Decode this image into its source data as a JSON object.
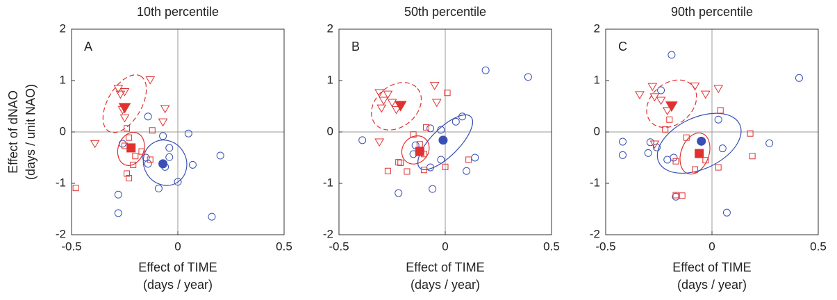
{
  "chart_data": [
    {
      "type": "scatter",
      "title": "10th percentile",
      "panel_label": "A",
      "x_label": [
        "Effect of TIME",
        "(days / year)"
      ],
      "y_label": [
        "Effect of dNAO",
        "(days / unit NAO)"
      ],
      "xlim": [
        -0.5,
        0.5
      ],
      "ylim": [
        -2,
        2
      ],
      "xticks": [
        -0.5,
        0,
        0.5
      ],
      "yticks": [
        -2,
        -1,
        0,
        1,
        2
      ],
      "series": [
        {
          "marker": "circle",
          "color": "#3a4fb5",
          "filled": false,
          "x": [
            -0.14,
            -0.07,
            0.05,
            -0.04,
            -0.04,
            -0.06,
            -0.09,
            0.0,
            0.07,
            0.2,
            0.16,
            -0.28,
            -0.28,
            -0.26,
            -0.15,
            -0.14
          ],
          "values": [
            0.3,
            -0.08,
            -0.03,
            -0.31,
            -0.49,
            -0.68,
            -1.1,
            -0.97,
            -0.64,
            -0.46,
            -1.65,
            -1.22,
            -1.58,
            -0.23,
            -0.5,
            -0.62
          ]
        },
        {
          "marker": "square",
          "color": "#e03030",
          "filled": false,
          "x": [
            -0.48,
            -0.24,
            -0.23,
            -0.25,
            -0.17,
            -0.2,
            -0.21,
            -0.23,
            -0.13,
            -0.12,
            -0.24
          ],
          "values": [
            -1.09,
            0.07,
            -0.11,
            -0.27,
            -0.38,
            -0.47,
            -0.64,
            -0.9,
            -0.54,
            0.03,
            -0.81
          ]
        },
        {
          "marker": "triangle",
          "color": "#e03030",
          "filled": false,
          "x": [
            -0.13,
            -0.28,
            -0.25,
            -0.27,
            -0.26,
            -0.25,
            -0.06,
            -0.07,
            -0.39
          ],
          "values": [
            1.01,
            0.84,
            0.78,
            0.73,
            0.43,
            0.27,
            0.45,
            0.19,
            -0.23
          ]
        },
        {
          "marker": "triangle",
          "color": "#e03030",
          "filled": true,
          "x": [
            -0.25
          ],
          "values": [
            0.47
          ]
        },
        {
          "marker": "square",
          "color": "#e03030",
          "filled": true,
          "x": [
            -0.22
          ],
          "values": [
            -0.31
          ]
        },
        {
          "marker": "circle",
          "color": "#3a4fb5",
          "filled": true,
          "x": [
            -0.07
          ],
          "values": [
            -0.62
          ]
        }
      ],
      "ellipses": [
        {
          "cx": -0.25,
          "cy": 0.55,
          "rx": 0.15,
          "ry": 0.33,
          "angle": -60,
          "color": "#e03030",
          "dashed": true
        },
        {
          "cx": -0.22,
          "cy": -0.33,
          "rx": 0.08,
          "ry": 0.25,
          "angle": -70,
          "color": "#e03030",
          "dashed": false
        },
        {
          "cx": -0.06,
          "cy": -0.6,
          "rx": 0.1,
          "ry": 0.45,
          "angle": -30,
          "color": "#3a4fb5",
          "dashed": false
        }
      ]
    },
    {
      "type": "scatter",
      "title": "50th percentile",
      "panel_label": "B",
      "x_label": [
        "Effect of TIME",
        "(days / year)"
      ],
      "xlim": [
        -0.5,
        0.5
      ],
      "ylim": [
        -2,
        2
      ],
      "xticks": [
        -0.5,
        0,
        0.5
      ],
      "yticks": [
        -2,
        -1,
        0,
        1,
        2
      ],
      "series": [
        {
          "marker": "circle",
          "color": "#3a4fb5",
          "filled": false,
          "x": [
            0.19,
            0.39,
            -0.39,
            -0.07,
            -0.02,
            0.05,
            0.08,
            -0.02,
            -0.07,
            -0.15,
            -0.22,
            -0.06,
            0.1,
            0.14,
            -0.14
          ],
          "values": [
            1.2,
            1.07,
            -0.16,
            0.07,
            0.04,
            0.2,
            0.3,
            -0.54,
            -0.69,
            -0.43,
            -1.19,
            -1.11,
            -0.76,
            -0.5,
            -0.26
          ]
        },
        {
          "marker": "square",
          "color": "#e03030",
          "filled": false,
          "x": [
            -0.27,
            -0.22,
            -0.21,
            -0.18,
            -0.15,
            -0.09,
            -0.12,
            -0.1,
            0.01,
            0.11,
            0.0,
            -0.1
          ],
          "values": [
            -0.76,
            -0.59,
            -0.6,
            -0.77,
            -0.05,
            0.09,
            -0.24,
            -0.43,
            0.76,
            -0.54,
            -0.68,
            -0.74
          ]
        },
        {
          "marker": "triangle",
          "color": "#e03030",
          "filled": false,
          "x": [
            -0.31,
            -0.27,
            -0.29,
            -0.25,
            -0.23,
            -0.3,
            -0.05,
            -0.04,
            -0.31
          ],
          "values": [
            0.76,
            0.73,
            0.61,
            0.57,
            0.43,
            0.46,
            0.9,
            0.57,
            -0.2
          ]
        },
        {
          "marker": "triangle",
          "color": "#e03030",
          "filled": true,
          "x": [
            -0.21
          ],
          "values": [
            0.51
          ]
        },
        {
          "marker": "square",
          "color": "#e03030",
          "filled": true,
          "x": [
            -0.12
          ],
          "values": [
            -0.38
          ]
        },
        {
          "marker": "circle",
          "color": "#3a4fb5",
          "filled": true,
          "x": [
            -0.01
          ],
          "values": [
            -0.16
          ]
        }
      ],
      "ellipses": [
        {
          "cx": -0.23,
          "cy": 0.5,
          "rx": 0.13,
          "ry": 0.4,
          "angle": -40,
          "color": "#e03030",
          "dashed": true
        },
        {
          "cx": -0.14,
          "cy": -0.35,
          "rx": 0.07,
          "ry": 0.25,
          "angle": -50,
          "color": "#e03030",
          "dashed": false
        },
        {
          "cx": 0.0,
          "cy": -0.2,
          "rx": 0.17,
          "ry": 0.27,
          "angle": -45,
          "color": "#3a4fb5",
          "dashed": false
        }
      ]
    },
    {
      "type": "scatter",
      "title": "90th percentile",
      "panel_label": "C",
      "x_label": [
        "Effect of TIME",
        "(days / year)"
      ],
      "xlim": [
        -0.5,
        0.5
      ],
      "ylim": [
        -2,
        2
      ],
      "xticks": [
        -0.5,
        0,
        0.5
      ],
      "yticks": [
        -2,
        -1,
        0,
        1,
        2
      ],
      "series": [
        {
          "marker": "circle",
          "color": "#3a4fb5",
          "filled": false,
          "x": [
            -0.19,
            0.41,
            -0.42,
            -0.42,
            -0.29,
            -0.26,
            -0.3,
            -0.24,
            0.03,
            -0.21,
            -0.17,
            0.07,
            0.27,
            0.05,
            -0.18
          ],
          "values": [
            1.5,
            1.05,
            -0.19,
            -0.45,
            -0.2,
            -0.3,
            -0.41,
            0.81,
            0.24,
            -0.54,
            -1.26,
            -1.57,
            -0.22,
            -0.32,
            -0.5
          ]
        },
        {
          "marker": "square",
          "color": "#e03030",
          "filled": false,
          "x": [
            -0.22,
            -0.2,
            0.04,
            0.18,
            0.19,
            0.03,
            -0.08,
            -0.17,
            -0.14,
            -0.03,
            -0.12,
            -0.17
          ],
          "values": [
            0.05,
            0.24,
            0.42,
            -0.03,
            -0.47,
            -0.69,
            -0.73,
            -1.23,
            -1.24,
            -0.55,
            -0.11,
            -0.57
          ]
        },
        {
          "marker": "triangle",
          "color": "#e03030",
          "filled": false,
          "x": [
            -0.34,
            -0.28,
            -0.27,
            -0.24,
            -0.21,
            -0.08,
            -0.03,
            0.03,
            -0.27
          ],
          "values": [
            0.72,
            0.88,
            0.68,
            0.61,
            0.41,
            0.89,
            0.73,
            0.84,
            -0.24
          ]
        },
        {
          "marker": "triangle",
          "color": "#e03030",
          "filled": true,
          "x": [
            -0.19
          ],
          "values": [
            0.5
          ]
        },
        {
          "marker": "square",
          "color": "#e03030",
          "filled": true,
          "x": [
            -0.06
          ],
          "values": [
            -0.42
          ]
        },
        {
          "marker": "circle",
          "color": "#3a4fb5",
          "filled": true,
          "x": [
            -0.05
          ],
          "values": [
            -0.18
          ]
        }
      ],
      "ellipses": [
        {
          "cx": -0.19,
          "cy": 0.55,
          "rx": 0.13,
          "ry": 0.4,
          "angle": -40,
          "color": "#e03030",
          "dashed": true
        },
        {
          "cx": -0.08,
          "cy": -0.42,
          "rx": 0.1,
          "ry": 0.27,
          "angle": -70,
          "color": "#e03030",
          "dashed": false
        },
        {
          "cx": -0.06,
          "cy": -0.22,
          "rx": 0.21,
          "ry": 0.5,
          "angle": -25,
          "color": "#3a4fb5",
          "dashed": false
        }
      ]
    }
  ]
}
